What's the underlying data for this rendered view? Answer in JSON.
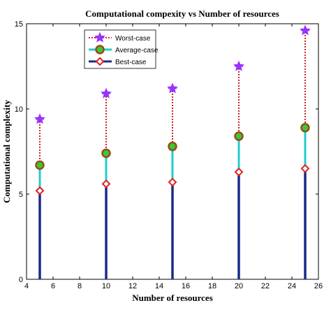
{
  "chart_data": {
    "type": "stem",
    "title": "Computational compexity vs Number of resources",
    "xlabel": "Number of resources",
    "ylabel": "Computational complexity",
    "xlim": [
      4,
      26
    ],
    "ylim": [
      0,
      15
    ],
    "xticks": [
      4,
      6,
      8,
      10,
      12,
      14,
      16,
      18,
      20,
      22,
      24,
      26
    ],
    "yticks": [
      0,
      5,
      10,
      15
    ],
    "x": [
      5,
      10,
      15,
      20,
      25
    ],
    "grid": false,
    "legend_position": "top-left",
    "series": [
      {
        "name": "Worst-case",
        "values": [
          9.4,
          10.9,
          11.2,
          12.5,
          14.6
        ],
        "color": "#cc2222",
        "marker_color": "#9933ff",
        "marker": "star",
        "line_style": "dotted"
      },
      {
        "name": "Average-case",
        "values": [
          6.7,
          7.4,
          7.8,
          8.4,
          8.9
        ],
        "color": "#22cccc",
        "marker_color": "#9a4a1a",
        "marker_fill": "#33cc33",
        "marker": "circle",
        "line_style": "solid"
      },
      {
        "name": "Best-case",
        "values": [
          5.2,
          5.6,
          5.7,
          6.3,
          6.5
        ],
        "color": "#1a2a8a",
        "marker_color": "#dd2222",
        "marker": "diamond",
        "line_style": "solid"
      }
    ]
  }
}
